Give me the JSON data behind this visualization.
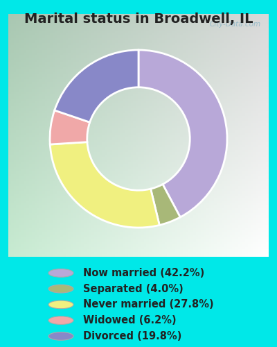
{
  "title": "Marital status in Broadwell, IL",
  "title_fontsize": 14,
  "title_fontweight": "bold",
  "title_color": "#222222",
  "slices": [
    42.2,
    4.0,
    27.8,
    6.2,
    19.8
  ],
  "labels": [
    "Now married (42.2%)",
    "Separated (4.0%)",
    "Never married (27.8%)",
    "Widowed (6.2%)",
    "Divorced (19.8%)"
  ],
  "colors": [
    "#b8a8d8",
    "#a8b878",
    "#f0f080",
    "#f0a8a8",
    "#8888c8"
  ],
  "outer_background": "#00e8e8",
  "chart_bg_color": "#c8e8d8",
  "legend_fontsize": 10.5,
  "watermark": "City-Data.com",
  "donut_width": 0.42,
  "start_angle": 90
}
